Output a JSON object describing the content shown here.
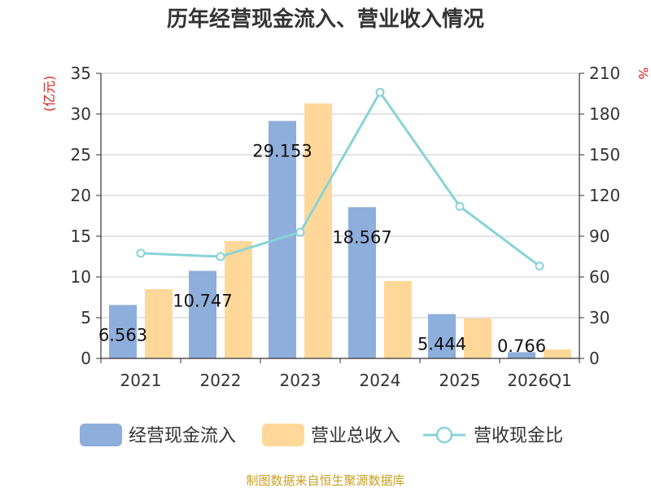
{
  "chart_data": {
    "type": "bar",
    "title": "历年经营现金流入、营业收入情况",
    "categories": [
      "2021",
      "2022",
      "2023",
      "2024",
      "2025",
      "2026Q1"
    ],
    "left_axis": {
      "label": "(亿元)",
      "min": 0,
      "max": 35,
      "ticks": [
        0,
        5,
        10,
        15,
        20,
        25,
        30,
        35
      ]
    },
    "right_axis": {
      "label": "%",
      "min": 0,
      "max": 210,
      "ticks": [
        0,
        30,
        60,
        90,
        120,
        150,
        180,
        210
      ]
    },
    "grid": true,
    "legend_position": "bottom",
    "series": [
      {
        "name": "经营现金流入",
        "type": "bar",
        "axis": "left",
        "color": "#8eaedb",
        "values": [
          6.563,
          10.747,
          29.153,
          18.567,
          5.444,
          0.766
        ],
        "labels": [
          "6.563",
          "10.747",
          "29.153",
          "18.567",
          "5.444",
          "0.766"
        ]
      },
      {
        "name": "营业总收入",
        "type": "bar",
        "axis": "left",
        "color": "#ffd899",
        "values": [
          8.5,
          14.4,
          31.3,
          9.5,
          4.9,
          1.1
        ]
      },
      {
        "name": "营收现金比",
        "type": "line",
        "axis": "right",
        "color": "#88d3d8",
        "values": [
          77.5,
          75.0,
          93.0,
          196.0,
          112.0,
          68.0
        ]
      }
    ]
  },
  "footer": {
    "source": "制图数据来自恒生聚源数据库"
  }
}
